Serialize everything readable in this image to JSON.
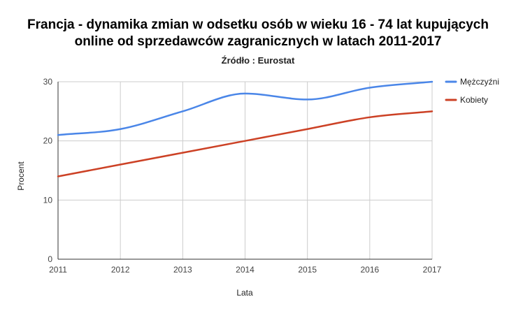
{
  "chart_data": {
    "type": "line",
    "title": "Francja - dynamika zmian w odsetku osób w wieku 16 - 74 lat kupujących online od sprzedawców zagranicznych w latach  2011-2017",
    "title_lines": [
      "Francja - dynamika zmian w odsetku osób w wieku 16 - 74 lat kupujących",
      "online od sprzedawców zagranicznych w latach  2011-2017"
    ],
    "subtitle": "Źródło : Eurostat",
    "xlabel": "Lata",
    "ylabel": "Procent",
    "x": [
      2011,
      2012,
      2013,
      2014,
      2015,
      2016,
      2017
    ],
    "x_tick_labels": [
      "2011",
      "2012",
      "2013",
      "2014",
      "2015",
      "2016",
      "2017"
    ],
    "y_ticks": [
      0,
      10,
      20,
      30
    ],
    "y_tick_labels": [
      "0",
      "10",
      "20",
      "30"
    ],
    "ylim": [
      0,
      30
    ],
    "grid": true,
    "legend_position": "right",
    "smooth": true,
    "series": [
      {
        "name": "Mężczyźni",
        "color": "#4a86e8",
        "values": [
          21,
          22,
          25,
          28,
          27,
          29,
          30
        ]
      },
      {
        "name": "Kobiety",
        "color": "#cc4125",
        "values": [
          14,
          16,
          18,
          20,
          22,
          24,
          25
        ]
      }
    ]
  }
}
